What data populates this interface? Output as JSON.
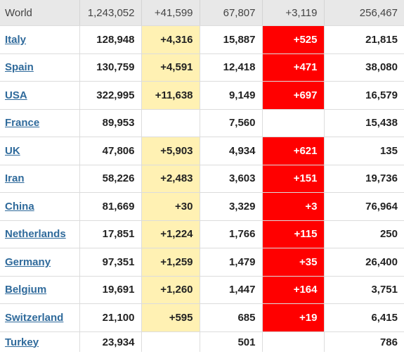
{
  "world": {
    "label": "World",
    "total_cases": "1,243,052",
    "new_cases": "+41,599",
    "total_deaths": "67,807",
    "new_deaths": "+3,119",
    "total_recovered": "256,467"
  },
  "rows": [
    {
      "country": "Italy",
      "total_cases": "128,948",
      "new_cases": "+4,316",
      "total_deaths": "15,887",
      "new_deaths": "+525",
      "total_recovered": "21,815"
    },
    {
      "country": "Spain",
      "total_cases": "130,759",
      "new_cases": "+4,591",
      "total_deaths": "12,418",
      "new_deaths": "+471",
      "total_recovered": "38,080"
    },
    {
      "country": "USA",
      "total_cases": "322,995",
      "new_cases": "+11,638",
      "total_deaths": "9,149",
      "new_deaths": "+697",
      "total_recovered": "16,579"
    },
    {
      "country": "France",
      "total_cases": "89,953",
      "new_cases": "",
      "total_deaths": "7,560",
      "new_deaths": "",
      "total_recovered": "15,438"
    },
    {
      "country": "UK",
      "total_cases": "47,806",
      "new_cases": "+5,903",
      "total_deaths": "4,934",
      "new_deaths": "+621",
      "total_recovered": "135"
    },
    {
      "country": "Iran",
      "total_cases": "58,226",
      "new_cases": "+2,483",
      "total_deaths": "3,603",
      "new_deaths": "+151",
      "total_recovered": "19,736"
    },
    {
      "country": "China",
      "total_cases": "81,669",
      "new_cases": "+30",
      "total_deaths": "3,329",
      "new_deaths": "+3",
      "total_recovered": "76,964"
    },
    {
      "country": "Netherlands",
      "total_cases": "17,851",
      "new_cases": "+1,224",
      "total_deaths": "1,766",
      "new_deaths": "+115",
      "total_recovered": "250"
    },
    {
      "country": "Germany",
      "total_cases": "97,351",
      "new_cases": "+1,259",
      "total_deaths": "1,479",
      "new_deaths": "+35",
      "total_recovered": "26,400"
    },
    {
      "country": "Belgium",
      "total_cases": "19,691",
      "new_cases": "+1,260",
      "total_deaths": "1,447",
      "new_deaths": "+164",
      "total_recovered": "3,751"
    },
    {
      "country": "Switzerland",
      "total_cases": "21,100",
      "new_cases": "+595",
      "total_deaths": "685",
      "new_deaths": "+19",
      "total_recovered": "6,415"
    },
    {
      "country": "Turkey",
      "total_cases": "23,934",
      "new_cases": "",
      "total_deaths": "501",
      "new_deaths": "",
      "total_recovered": "786"
    }
  ],
  "colors": {
    "new_cases_highlight": "#fff1b3",
    "new_deaths_highlight": "#ff0000",
    "link": "#2f6a9b",
    "world_row_bg": "#e8e8e8"
  }
}
